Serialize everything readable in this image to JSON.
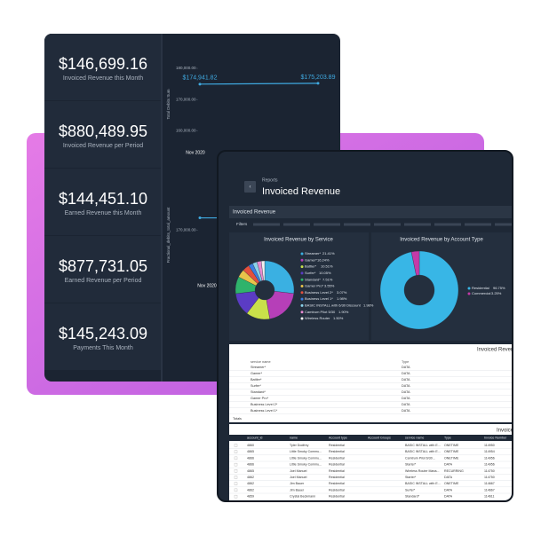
{
  "kpis": [
    {
      "value": "$146,699.16",
      "label": "Invoiced Revenue this Month"
    },
    {
      "value": "$880,489.95",
      "label": "Invoiced Revenue per Period"
    },
    {
      "value": "$144,451.10",
      "label": "Earned Revenue this Month"
    },
    {
      "value": "$877,731.05",
      "label": "Earned Revenue per Period"
    },
    {
      "value": "$145,243.09",
      "label": "Payments This Month"
    }
  ],
  "chart_data": [
    {
      "type": "line",
      "y_label": "Total Debits Sum",
      "categories": [
        "Nov 2020",
        null
      ],
      "values": [
        174941.82,
        175203.89
      ],
      "value_labels": [
        "$174,941.82",
        "$175,203.89"
      ],
      "color": "#3fa9e0",
      "ylim": [
        155000,
        182000
      ],
      "yticks": [
        {
          "value": 180000,
          "label": "180,000.00"
        },
        {
          "value": 170000,
          "label": "170,000.00"
        },
        {
          "value": 160000,
          "label": "160,000.00"
        }
      ]
    },
    {
      "type": "line",
      "y_label": "Fractional_debits_total_amount",
      "categories": [
        "Nov 2020"
      ],
      "values": [
        172500
      ],
      "color": "#3fa9e0",
      "ylim": [
        160000,
        178000
      ],
      "yticks": [
        {
          "value": 170000,
          "label": "170,000.00"
        }
      ]
    },
    {
      "type": "pie",
      "title": "Invoiced Revenue by Service",
      "categories": [
        "Streamer*",
        "Gamer*",
        "Battler*",
        "Surfer*",
        "Standard*",
        "Gamer Pro*",
        "Business Level 2*",
        "Business Level 1*",
        "BASIC INSTALL with 6/30 Discount",
        "Camtrum Pilot 5/30",
        "Wireless Router"
      ],
      "values": [
        21.41,
        16.24,
        10.51,
        10.05,
        7.51,
        3.55,
        3.07,
        1.98,
        1.98,
        1.9,
        1.5
      ],
      "value_labels": [
        "21.41%",
        "16.24%",
        "10.51%",
        "10.05%",
        "7.51%",
        "3.55%",
        "3.07%",
        "1.98%",
        "1.98%",
        "1.90%",
        "1.50%"
      ],
      "colors": [
        "#3ab0e2",
        "#b63fb8",
        "#c9e04a",
        "#5b3cc4",
        "#2fb36b",
        "#e8c34a",
        "#e3503d",
        "#3c7ee0",
        "#8ad2e8",
        "#e88ad0",
        "#f0f0f0"
      ]
    },
    {
      "type": "pie",
      "title": "Invoiced Revenue by Account Type",
      "categories": [
        "Residential",
        "Commercial"
      ],
      "values": [
        96.75,
        3.25
      ],
      "value_labels": [
        "96.75%",
        "3.25%"
      ],
      "colors": [
        "#38b6e6",
        "#c43aa8"
      ]
    }
  ],
  "report": {
    "breadcrumb": "Reports",
    "title": "Invoiced Revenue",
    "section": "Invoiced Revenue",
    "filters": "Filters"
  },
  "table1": {
    "title": "Invoiced Revenue",
    "columns": [
      "service name",
      "Type"
    ],
    "rows": [
      [
        "Streamer*",
        "DATA"
      ],
      [
        "Gamer*",
        "DATA"
      ],
      [
        "Battler*",
        "DATA"
      ],
      [
        "Surfer*",
        "DATA"
      ],
      [
        "Standard*",
        "DATA"
      ],
      [
        "Gamer Pro*",
        "DATA"
      ],
      [
        "Business Level 2*",
        "DATA"
      ],
      [
        "Business Level 1*",
        "DATA"
      ]
    ],
    "total": "Totals"
  },
  "table2": {
    "title": "Invoiced Revenue",
    "columns": [
      "account_id",
      "name",
      "Account type",
      "Account Groups",
      "service name",
      "Type",
      "Invoice Number"
    ],
    "rows": [
      [
        "4860",
        "Tyler Dodfrey",
        "Residential",
        "",
        "BASIC INSTALL with E...",
        "ONETIME",
        "114950"
      ],
      [
        "4865",
        "Little Smoky Commu...",
        "Residential",
        "",
        "BASIC INSTALL with E...",
        "ONETIME",
        "114954"
      ],
      [
        "4866",
        "Little Smoky Commu...",
        "Residential",
        "",
        "Camtrum Pilot 6/30...",
        "ONETIME",
        "114956"
      ],
      [
        "4866",
        "Little Smoky Commu...",
        "Residential",
        "",
        "Starter*",
        "DATA",
        "114956"
      ],
      [
        "4865",
        "Joel Manuel",
        "Residential",
        "",
        "Wireless Router Mana...",
        "RECURRING",
        "114750"
      ],
      [
        "4862",
        "Joel Manuel",
        "Residential",
        "",
        "Starter*",
        "DATA",
        "114750"
      ],
      [
        "4862",
        "Jim Bauer",
        "Residential",
        "",
        "BASIC INSTALL with E...",
        "ONETIME",
        "114667"
      ],
      [
        "4862",
        "Jim Bauer",
        "Residential",
        "",
        "Surfer*",
        "DATA",
        "114667"
      ],
      [
        "4859",
        "Crystal Beckmann",
        "Residential",
        "",
        "Standard*",
        "DATA",
        "114611"
      ]
    ]
  }
}
